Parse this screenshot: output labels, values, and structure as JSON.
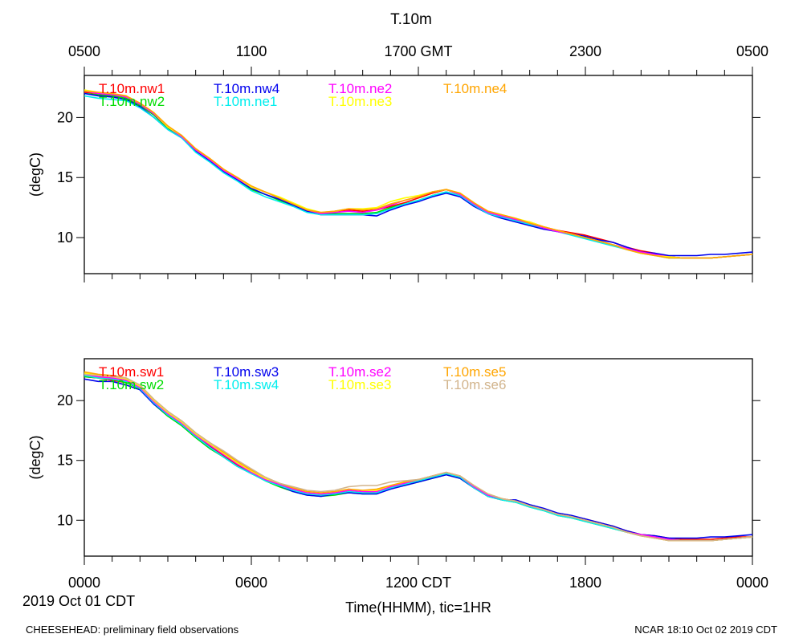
{
  "title": "T.10m",
  "top_axis": {
    "tick_labels": [
      "0500",
      "1100",
      "1700 GMT",
      "2300",
      "0500"
    ]
  },
  "bottom_axis": {
    "tick_labels": [
      "0000",
      "0600",
      "1200 CDT",
      "1800",
      "0000"
    ],
    "date_label": "2019 Oct 01 CDT",
    "xlabel": "Time(HHMM), tic=1HR"
  },
  "footer": {
    "left": "CHEESEHEAD: preliminary field observations",
    "right": "NCAR 18:10 Oct 02 2019 CDT"
  },
  "chart_data": [
    {
      "type": "line",
      "title": "T.10m",
      "xlabel": "Time(HHMM), tic=1HR",
      "ylabel": "(degC)",
      "x_unit": "hours since 2019 Oct 01 00:00 CDT",
      "xlim": [
        0,
        24
      ],
      "ylim": [
        7,
        23.5
      ],
      "yticks": [
        10,
        15,
        20
      ],
      "x": [
        0,
        0.5,
        1,
        1.5,
        2,
        2.5,
        3,
        3.5,
        4,
        4.5,
        5,
        5.5,
        6,
        6.5,
        7,
        7.5,
        8,
        8.5,
        9,
        9.5,
        10,
        10.5,
        11,
        11.5,
        12,
        12.5,
        13,
        13.5,
        14,
        14.5,
        15,
        15.5,
        16,
        16.5,
        17,
        17.5,
        18,
        18.5,
        19,
        19.5,
        20,
        20.5,
        21,
        21.5,
        22,
        22.5,
        23,
        23.5,
        24
      ],
      "series": [
        {
          "name": "T.10m.nw1",
          "color": "#ff0000",
          "values": [
            22.1,
            22.0,
            21.8,
            21.6,
            21.0,
            20.3,
            19.2,
            18.5,
            17.3,
            16.5,
            15.6,
            15.0,
            14.2,
            13.8,
            13.3,
            12.8,
            12.3,
            12.0,
            12.2,
            12.3,
            12.2,
            12.3,
            12.6,
            12.9,
            13.3,
            13.7,
            14.0,
            13.6,
            12.8,
            12.1,
            11.8,
            11.5,
            11.3,
            10.9,
            10.6,
            10.4,
            10.2,
            9.9,
            9.6,
            9.2,
            8.9,
            8.7,
            8.4,
            8.3,
            8.3,
            8.3,
            8.4,
            8.5,
            8.6
          ]
        },
        {
          "name": "T.10m.nw2",
          "color": "#00dd00",
          "values": [
            22.0,
            21.9,
            21.8,
            21.6,
            21.0,
            20.2,
            19.1,
            18.4,
            17.2,
            16.4,
            15.6,
            14.8,
            14.0,
            13.6,
            13.1,
            12.7,
            12.2,
            12.0,
            12.0,
            12.0,
            12.0,
            12.1,
            12.5,
            12.8,
            13.1,
            13.5,
            13.8,
            13.5,
            12.7,
            12.1,
            11.7,
            11.4,
            11.1,
            10.8,
            10.5,
            10.3,
            10.0,
            9.7,
            9.4,
            9.1,
            8.8,
            8.6,
            8.4,
            8.3,
            8.3,
            8.3,
            8.4,
            8.5,
            8.6
          ]
        },
        {
          "name": "T.10m.nw4",
          "color": "#0000ee",
          "values": [
            22.0,
            21.8,
            21.7,
            21.5,
            20.9,
            20.0,
            19.0,
            18.3,
            17.2,
            16.4,
            15.5,
            14.8,
            14.1,
            13.6,
            13.2,
            12.7,
            12.2,
            11.9,
            11.9,
            11.9,
            11.9,
            11.8,
            12.3,
            12.7,
            13.0,
            13.4,
            13.7,
            13.4,
            12.6,
            12.0,
            11.6,
            11.3,
            11.0,
            10.7,
            10.5,
            10.3,
            10.1,
            9.8,
            9.6,
            9.2,
            8.8,
            8.7,
            8.5,
            8.5,
            8.5,
            8.6,
            8.6,
            8.7,
            8.8
          ]
        },
        {
          "name": "T.10m.ne1",
          "color": "#00eeee",
          "values": [
            21.8,
            21.6,
            21.5,
            21.4,
            20.8,
            20.0,
            19.0,
            18.3,
            17.1,
            16.3,
            15.4,
            14.7,
            13.9,
            13.4,
            13.0,
            12.6,
            12.1,
            11.9,
            11.9,
            11.9,
            11.9,
            12.0,
            12.4,
            12.8,
            13.1,
            13.5,
            13.8,
            13.5,
            12.7,
            12.0,
            11.7,
            11.4,
            11.1,
            10.8,
            10.5,
            10.2,
            9.9,
            9.6,
            9.3,
            9.0,
            8.7,
            8.5,
            8.3,
            8.3,
            8.3,
            8.3,
            8.4,
            8.5,
            8.6
          ]
        },
        {
          "name": "T.10m.ne2",
          "color": "#ff00ff",
          "values": [
            22.2,
            22.0,
            21.9,
            21.7,
            21.1,
            20.3,
            19.2,
            18.4,
            17.3,
            16.5,
            15.6,
            14.9,
            14.2,
            13.8,
            13.3,
            12.8,
            12.3,
            12.0,
            12.1,
            12.2,
            12.1,
            12.3,
            12.7,
            13.1,
            13.4,
            13.8,
            14.0,
            13.6,
            12.8,
            12.1,
            11.8,
            11.5,
            11.2,
            10.8,
            10.5,
            10.3,
            10.0,
            9.7,
            9.4,
            9.1,
            8.8,
            8.6,
            8.4,
            8.3,
            8.3,
            8.3,
            8.4,
            8.5,
            8.6
          ]
        },
        {
          "name": "T.10m.ne3",
          "color": "#ffff00",
          "values": [
            22.3,
            22.1,
            22.0,
            21.8,
            21.2,
            20.4,
            19.2,
            18.5,
            17.4,
            16.6,
            15.7,
            15.0,
            14.2,
            13.8,
            13.4,
            12.9,
            12.4,
            12.1,
            12.2,
            12.4,
            12.4,
            12.5,
            13.0,
            13.3,
            13.5,
            13.8,
            14.0,
            13.7,
            12.9,
            12.2,
            11.9,
            11.6,
            11.3,
            10.9,
            10.6,
            10.3,
            10.0,
            9.7,
            9.4,
            9.0,
            8.7,
            8.5,
            8.4,
            8.3,
            8.3,
            8.3,
            8.4,
            8.5,
            8.6
          ]
        },
        {
          "name": "T.10m.ne4",
          "color": "#ffa500",
          "values": [
            22.2,
            22.1,
            22.0,
            21.8,
            21.2,
            20.4,
            19.3,
            18.5,
            17.4,
            16.6,
            15.7,
            15.0,
            14.3,
            13.8,
            13.3,
            12.8,
            12.3,
            12.1,
            12.2,
            12.4,
            12.3,
            12.4,
            12.8,
            13.1,
            13.4,
            13.8,
            14.0,
            13.7,
            12.9,
            12.2,
            11.9,
            11.6,
            11.2,
            10.9,
            10.6,
            10.3,
            10.0,
            9.7,
            9.4,
            9.0,
            8.7,
            8.5,
            8.3,
            8.3,
            8.3,
            8.3,
            8.4,
            8.5,
            8.6
          ]
        }
      ]
    },
    {
      "type": "line",
      "xlabel": "Time(HHMM), tic=1HR",
      "ylabel": "(degC)",
      "x_unit": "hours since 2019 Oct 01 00:00 CDT",
      "xlim": [
        0,
        24
      ],
      "ylim": [
        7,
        23.5
      ],
      "yticks": [
        10,
        15,
        20
      ],
      "x": [
        0,
        0.5,
        1,
        1.5,
        2,
        2.5,
        3,
        3.5,
        4,
        4.5,
        5,
        5.5,
        6,
        6.5,
        7,
        7.5,
        8,
        8.5,
        9,
        9.5,
        10,
        10.5,
        11,
        11.5,
        12,
        12.5,
        13,
        13.5,
        14,
        14.5,
        15,
        15.5,
        16,
        16.5,
        17,
        17.5,
        18,
        18.5,
        19,
        19.5,
        20,
        20.5,
        21,
        21.5,
        22,
        22.5,
        23,
        23.5,
        24
      ],
      "series": [
        {
          "name": "T.10m.sw1",
          "color": "#ff0000",
          "values": [
            22.0,
            21.9,
            21.7,
            21.5,
            21.0,
            19.8,
            18.8,
            18.0,
            17.0,
            16.2,
            15.4,
            14.6,
            14.0,
            13.4,
            12.9,
            12.5,
            12.2,
            12.1,
            12.3,
            12.4,
            12.3,
            12.4,
            12.7,
            13.0,
            13.3,
            13.6,
            13.9,
            13.6,
            12.7,
            12.0,
            11.7,
            11.6,
            11.2,
            10.9,
            10.5,
            10.3,
            10.1,
            9.8,
            9.5,
            9.1,
            8.8,
            8.7,
            8.5,
            8.4,
            8.4,
            8.4,
            8.5,
            8.6,
            8.6
          ]
        },
        {
          "name": "T.10m.sw2",
          "color": "#00dd00",
          "values": [
            22.0,
            21.9,
            21.8,
            21.5,
            21.0,
            19.7,
            18.7,
            17.9,
            16.9,
            16.0,
            15.3,
            14.5,
            13.9,
            13.3,
            12.8,
            12.4,
            12.1,
            12.0,
            12.1,
            12.3,
            12.2,
            12.2,
            12.7,
            12.9,
            13.2,
            13.5,
            13.8,
            13.5,
            12.7,
            12.0,
            11.7,
            11.5,
            11.1,
            10.8,
            10.4,
            10.2,
            9.9,
            9.6,
            9.3,
            9.0,
            8.7,
            8.6,
            8.4,
            8.3,
            8.3,
            8.3,
            8.4,
            8.5,
            8.6
          ]
        },
        {
          "name": "T.10m.sw3",
          "color": "#0000ee",
          "values": [
            21.8,
            21.6,
            21.6,
            21.3,
            20.9,
            19.7,
            18.8,
            18.0,
            17.0,
            16.1,
            15.3,
            14.5,
            13.9,
            13.4,
            12.9,
            12.4,
            12.1,
            12.0,
            12.2,
            12.3,
            12.2,
            12.2,
            12.6,
            12.9,
            13.2,
            13.5,
            13.8,
            13.5,
            12.7,
            12.0,
            11.7,
            11.7,
            11.3,
            11.0,
            10.6,
            10.4,
            10.1,
            9.8,
            9.5,
            9.1,
            8.8,
            8.7,
            8.5,
            8.5,
            8.5,
            8.6,
            8.6,
            8.7,
            8.8
          ]
        },
        {
          "name": "T.10m.sw4",
          "color": "#00eeee",
          "values": [
            22.1,
            21.9,
            21.8,
            21.6,
            21.0,
            19.8,
            18.8,
            18.0,
            17.0,
            16.1,
            15.3,
            14.5,
            13.9,
            13.3,
            12.9,
            12.5,
            12.2,
            12.1,
            12.2,
            12.4,
            12.3,
            12.3,
            12.7,
            13.0,
            13.3,
            13.6,
            13.9,
            13.6,
            12.7,
            12.0,
            11.7,
            11.5,
            11.1,
            10.8,
            10.4,
            10.2,
            9.9,
            9.6,
            9.3,
            9.0,
            8.7,
            8.6,
            8.4,
            8.3,
            8.3,
            8.3,
            8.4,
            8.5,
            8.6
          ]
        },
        {
          "name": "T.10m.se2",
          "color": "#ff00ff",
          "values": [
            22.2,
            22.0,
            21.9,
            21.7,
            21.1,
            19.9,
            18.9,
            18.1,
            17.1,
            16.3,
            15.5,
            14.7,
            14.0,
            13.4,
            13.0,
            12.6,
            12.3,
            12.2,
            12.3,
            12.5,
            12.4,
            12.4,
            12.8,
            13.1,
            13.4,
            13.7,
            14.0,
            13.7,
            12.8,
            12.1,
            11.8,
            11.6,
            11.2,
            10.9,
            10.5,
            10.3,
            10.0,
            9.7,
            9.4,
            9.0,
            8.8,
            8.6,
            8.4,
            8.3,
            8.3,
            8.3,
            8.4,
            8.5,
            8.6
          ]
        },
        {
          "name": "T.10m.se3",
          "color": "#ffff00",
          "values": [
            22.3,
            22.1,
            22.0,
            21.8,
            21.2,
            20.0,
            19.0,
            18.2,
            17.2,
            16.4,
            15.6,
            14.8,
            14.1,
            13.5,
            13.1,
            12.7,
            12.4,
            12.3,
            12.4,
            12.6,
            12.5,
            12.5,
            12.9,
            13.2,
            13.4,
            13.7,
            14.0,
            13.7,
            12.9,
            12.2,
            11.8,
            11.6,
            11.2,
            10.9,
            10.5,
            10.3,
            10.0,
            9.7,
            9.4,
            9.0,
            8.7,
            8.5,
            8.3,
            8.3,
            8.3,
            8.3,
            8.4,
            8.5,
            8.6
          ]
        },
        {
          "name": "T.10m.se5",
          "color": "#ffa500",
          "values": [
            22.4,
            22.2,
            22.1,
            21.9,
            21.3,
            20.1,
            19.1,
            18.3,
            17.3,
            16.5,
            15.7,
            14.9,
            14.2,
            13.6,
            13.1,
            12.7,
            12.4,
            12.3,
            12.4,
            12.6,
            12.5,
            12.6,
            12.9,
            13.2,
            13.4,
            13.7,
            14.0,
            13.7,
            12.9,
            12.2,
            11.8,
            11.6,
            11.2,
            10.9,
            10.5,
            10.3,
            10.0,
            9.7,
            9.4,
            9.0,
            8.7,
            8.5,
            8.3,
            8.3,
            8.3,
            8.3,
            8.4,
            8.5,
            8.6
          ]
        },
        {
          "name": "T.10m.se6",
          "color": "#d2b48c",
          "values": [
            22.2,
            22.1,
            22.0,
            21.9,
            21.3,
            20.1,
            19.1,
            18.3,
            17.3,
            16.5,
            15.8,
            15.0,
            14.3,
            13.6,
            13.1,
            12.8,
            12.5,
            12.4,
            12.5,
            12.8,
            12.9,
            12.9,
            13.2,
            13.3,
            13.4,
            13.7,
            14.0,
            13.7,
            12.9,
            12.2,
            11.8,
            11.6,
            11.2,
            10.9,
            10.5,
            10.3,
            10.0,
            9.7,
            9.4,
            9.0,
            8.7,
            8.5,
            8.3,
            8.3,
            8.3,
            8.3,
            8.4,
            8.5,
            8.6
          ]
        }
      ]
    }
  ]
}
